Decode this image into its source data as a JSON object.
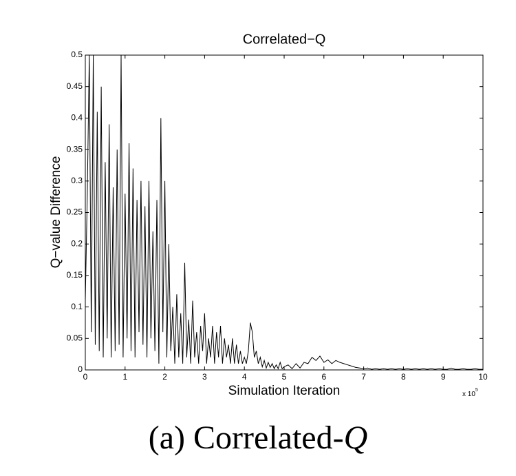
{
  "chart_data": {
    "type": "line",
    "title": "Correlated−Q",
    "xlabel": "Simulation Iteration",
    "ylabel": "Q−value Difference",
    "x_multiplier": {
      "base": "x 10",
      "exponent": "5"
    },
    "caption": [
      "(a) Correlated-",
      "Q"
    ],
    "xlim": [
      0,
      10
    ],
    "xticks": [
      0,
      1,
      2,
      3,
      4,
      5,
      6,
      7,
      8,
      9,
      10
    ],
    "ylim": [
      0,
      0.5
    ],
    "yticks": [
      0,
      0.05,
      0.1,
      0.15,
      0.2,
      0.25,
      0.3,
      0.35,
      0.4,
      0.45,
      0.5
    ],
    "grid": false,
    "x": [
      0,
      0.05,
      0.1,
      0.15,
      0.2,
      0.25,
      0.3,
      0.35,
      0.4,
      0.45,
      0.5,
      0.55,
      0.6,
      0.65,
      0.7,
      0.75,
      0.8,
      0.85,
      0.9,
      0.95,
      1,
      1.05,
      1.1,
      1.15,
      1.2,
      1.25,
      1.3,
      1.35,
      1.4,
      1.45,
      1.5,
      1.55,
      1.6,
      1.65,
      1.7,
      1.75,
      1.8,
      1.85,
      1.9,
      1.95,
      2,
      2.05,
      2.1,
      2.15,
      2.2,
      2.25,
      2.3,
      2.35,
      2.4,
      2.45,
      2.5,
      2.55,
      2.6,
      2.65,
      2.7,
      2.75,
      2.8,
      2.85,
      2.9,
      2.95,
      3,
      3.05,
      3.1,
      3.15,
      3.2,
      3.25,
      3.3,
      3.35,
      3.4,
      3.45,
      3.5,
      3.55,
      3.6,
      3.65,
      3.7,
      3.75,
      3.8,
      3.85,
      3.9,
      3.95,
      4,
      4.05,
      4.1,
      4.15,
      4.2,
      4.25,
      4.3,
      4.35,
      4.4,
      4.45,
      4.5,
      4.55,
      4.6,
      4.65,
      4.7,
      4.75,
      4.8,
      4.85,
      4.9,
      4.95,
      5,
      5.1,
      5.2,
      5.3,
      5.4,
      5.5,
      5.6,
      5.7,
      5.8,
      5.9,
      6,
      6.1,
      6.2,
      6.3,
      6.4,
      6.5,
      6.6,
      6.7,
      6.8,
      6.9,
      7,
      7.1,
      7.2,
      7.3,
      7.4,
      7.5,
      7.6,
      7.7,
      7.8,
      7.9,
      8,
      8.1,
      8.2,
      8.3,
      8.4,
      8.5,
      8.6,
      8.7,
      8.8,
      8.9,
      9,
      9.1,
      9.2,
      9.3,
      9.4,
      9.5,
      9.6,
      9.7,
      9.8,
      9.9,
      10
    ],
    "series": [
      {
        "color": "#000000",
        "values": [
          0.11,
          0.28,
          0.5,
          0.06,
          0.5,
          0.04,
          0.41,
          0.03,
          0.45,
          0.02,
          0.33,
          0.05,
          0.39,
          0.02,
          0.29,
          0.03,
          0.35,
          0.04,
          0.5,
          0.02,
          0.28,
          0.05,
          0.36,
          0.03,
          0.32,
          0.02,
          0.27,
          0.06,
          0.3,
          0.04,
          0.26,
          0.02,
          0.3,
          0.05,
          0.22,
          0.03,
          0.27,
          0.01,
          0.4,
          0.06,
          0.3,
          0.02,
          0.2,
          0.03,
          0.1,
          0.01,
          0.12,
          0.02,
          0.09,
          0.01,
          0.17,
          0.02,
          0.08,
          0.01,
          0.11,
          0.02,
          0.06,
          0.01,
          0.07,
          0.03,
          0.09,
          0.01,
          0.05,
          0.02,
          0.07,
          0.01,
          0.06,
          0.02,
          0.07,
          0.01,
          0.05,
          0.02,
          0.04,
          0.01,
          0.05,
          0.01,
          0.04,
          0.01,
          0.03,
          0.01,
          0.02,
          0.01,
          0.03,
          0.075,
          0.06,
          0.02,
          0.03,
          0.01,
          0.02,
          0.005,
          0.015,
          0.003,
          0.012,
          0.004,
          0.01,
          0.002,
          0.008,
          0.002,
          0.012,
          0.002,
          0.005,
          0.008,
          0.002,
          0.01,
          0.003,
          0.012,
          0.01,
          0.02,
          0.015,
          0.022,
          0.012,
          0.016,
          0.01,
          0.015,
          0.012,
          0.01,
          0.008,
          0.006,
          0.004,
          0.003,
          0.002,
          0.003,
          0.001,
          0.002,
          0.001,
          0.002,
          0.001,
          0.002,
          0.001,
          0.002,
          0.001,
          0.002,
          0.001,
          0.002,
          0.001,
          0.002,
          0.001,
          0.002,
          0.001,
          0.002,
          0.001,
          0.001,
          0.003,
          0.001,
          0.001,
          0.002,
          0.001,
          0.001,
          0.002,
          0.001,
          0.001
        ]
      }
    ]
  }
}
